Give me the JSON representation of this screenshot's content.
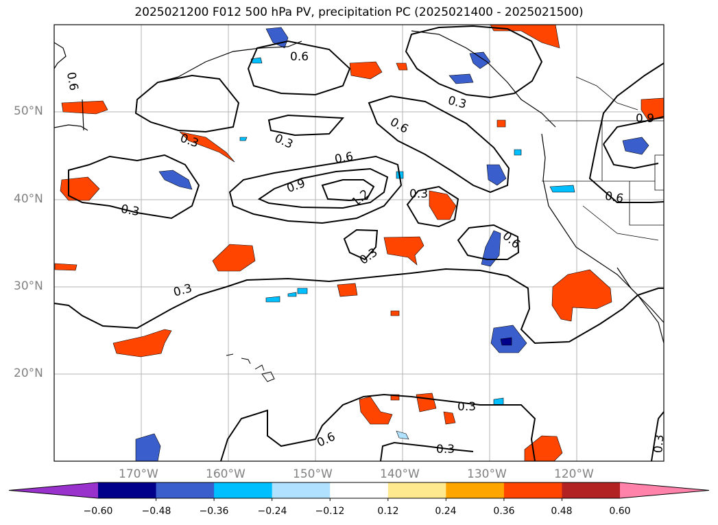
{
  "title": "2025021200 F012 500 hPa PV, precipitation PC (2025021400 - 2025021500)",
  "latitude_labels": [
    "50°N",
    "40°N",
    "30°N",
    "20°N"
  ],
  "longitude_labels": [
    "170°W",
    "160°W",
    "150°W",
    "140°W",
    "130°W",
    "120°W"
  ],
  "contour_labels": [
    "0.6",
    "0.6",
    "0.3",
    "0.6",
    "0.3",
    "0.3",
    "0.6",
    "0.9",
    "1.2",
    "0.3",
    "0.6",
    "0.9",
    "0.3",
    "0.6",
    "0.3",
    "0.3",
    "0.3",
    "0.6",
    "0.3",
    "0.3"
  ],
  "colorbar": {
    "ticks": [
      "−0.60",
      "−0.48",
      "−0.36",
      "−0.24",
      "−0.12",
      "0.12",
      "0.24",
      "0.36",
      "0.48",
      "0.60"
    ],
    "colors": [
      "#9932cc",
      "#00008b",
      "#3a5fcd",
      "#00bfff",
      "#b0e2ff",
      "#ffffff",
      "#ffe98f",
      "#ffa500",
      "#ff4500",
      "#b22222",
      "#ff82ab"
    ]
  }
}
